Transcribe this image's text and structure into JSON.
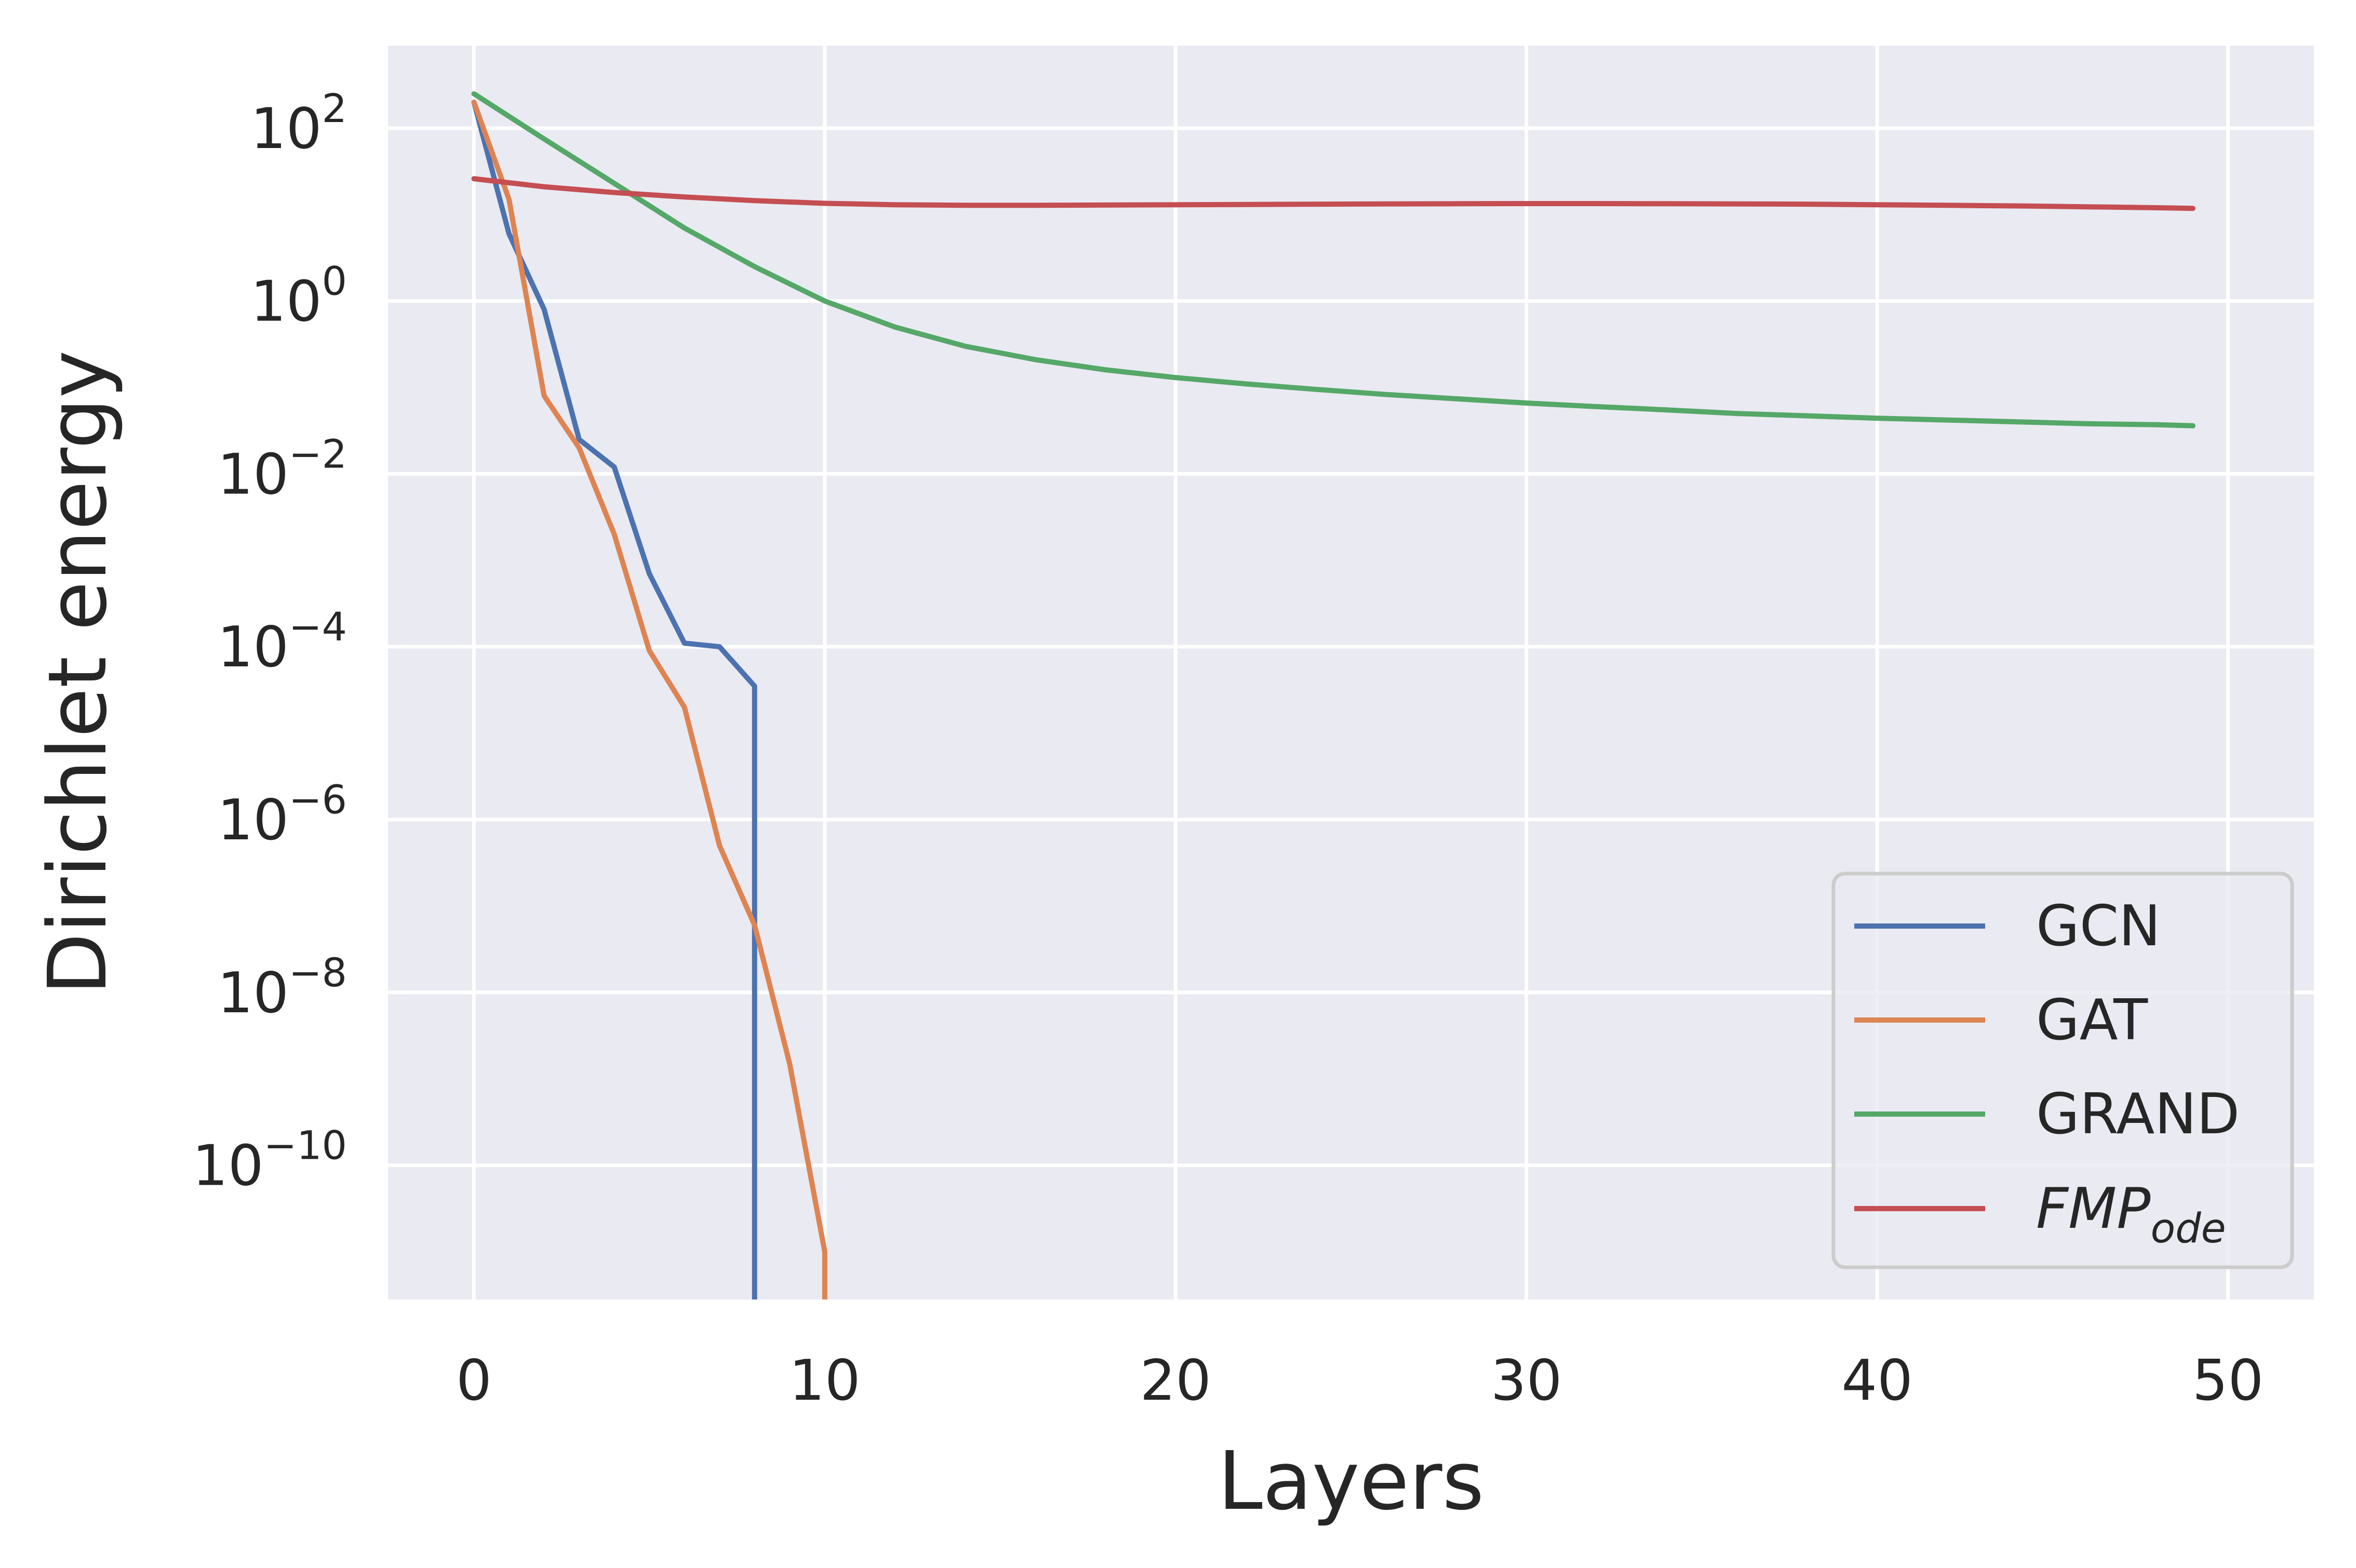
{
  "chart_data": {
    "type": "line",
    "title": "",
    "xlabel": "Layers",
    "ylabel": "Dirichlet energy",
    "xlim": [
      -2.45,
      52.45
    ],
    "ylim": [
      2.8e-12,
      900
    ],
    "y_scale": "log",
    "grid": true,
    "legend_position": "lower-right",
    "x_ticks": [
      {
        "value": 0,
        "label": "0"
      },
      {
        "value": 10,
        "label": "10"
      },
      {
        "value": 20,
        "label": "20"
      },
      {
        "value": 30,
        "label": "30"
      },
      {
        "value": 40,
        "label": "40"
      },
      {
        "value": 50,
        "label": "50"
      }
    ],
    "y_ticks": [
      {
        "value": 100,
        "base": "10",
        "exp": "2"
      },
      {
        "value": 1,
        "base": "10",
        "exp": "0"
      },
      {
        "value": 0.01,
        "base": "10",
        "exp": "−2"
      },
      {
        "value": 0.0001,
        "base": "10",
        "exp": "−4"
      },
      {
        "value": 1e-06,
        "base": "10",
        "exp": "−6"
      },
      {
        "value": 1e-08,
        "base": "10",
        "exp": "−8"
      },
      {
        "value": 1e-10,
        "base": "10",
        "exp": "−10"
      }
    ],
    "series": [
      {
        "name": "GCN",
        "color": "#4c72b0",
        "x": [
          0,
          1,
          2,
          3,
          4,
          5,
          6,
          7,
          8,
          8
        ],
        "y": [
          200,
          6,
          0.8,
          0.025,
          0.012,
          0.0007,
          0.00011,
          0.0001,
          3.5e-05,
          1e-13
        ]
      },
      {
        "name": "GAT",
        "color": "#dd8452",
        "x": [
          0,
          1,
          2,
          3,
          4,
          5,
          6,
          7,
          8,
          9,
          10,
          10
        ],
        "y": [
          200,
          15,
          0.08,
          0.02,
          0.002,
          9e-05,
          2e-05,
          5e-07,
          6e-08,
          1.5e-09,
          1e-11,
          1e-13
        ]
      },
      {
        "name": "GRAND",
        "color": "#55a868",
        "x": [
          0,
          2,
          4,
          6,
          8,
          10,
          12,
          14,
          16,
          18,
          20,
          22,
          24,
          26,
          28,
          30,
          32,
          34,
          36,
          38,
          40,
          42,
          44,
          46,
          48,
          49
        ],
        "y": [
          250,
          75,
          23,
          7,
          2.5,
          1.0,
          0.5,
          0.3,
          0.21,
          0.16,
          0.13,
          0.11,
          0.095,
          0.083,
          0.074,
          0.066,
          0.06,
          0.055,
          0.05,
          0.047,
          0.044,
          0.042,
          0.04,
          0.038,
          0.037,
          0.036
        ]
      },
      {
        "name": "FMP",
        "name_sub": "ode",
        "color": "#c44e52",
        "x": [
          0,
          2,
          4,
          6,
          8,
          10,
          12,
          14,
          16,
          18,
          20,
          22,
          24,
          26,
          28,
          30,
          32,
          34,
          36,
          38,
          40,
          42,
          44,
          46,
          48,
          49
        ],
        "y": [
          26,
          21,
          18,
          16,
          14.5,
          13.5,
          13,
          12.8,
          12.8,
          12.9,
          13,
          13.1,
          13.2,
          13.3,
          13.35,
          13.4,
          13.4,
          13.35,
          13.3,
          13.2,
          13,
          12.8,
          12.6,
          12.3,
          12,
          11.8
        ]
      }
    ]
  }
}
